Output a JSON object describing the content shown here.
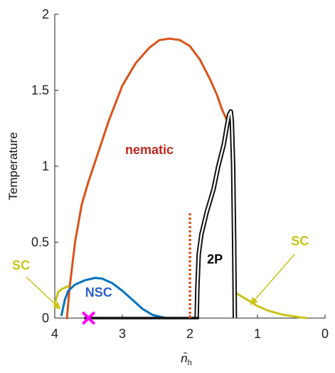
{
  "chart_data": {
    "type": "line",
    "title": "",
    "xlabel": "n̄",
    "xlabel_sub": "h",
    "ylabel": "Temperature",
    "xlim": [
      4,
      0
    ],
    "ylim": [
      0,
      2
    ],
    "x_reversed": true,
    "grid": false,
    "x_ticks": [
      4,
      3,
      2,
      1,
      0
    ],
    "x_tick_labels": [
      "4",
      "3",
      "2",
      "1",
      "0"
    ],
    "y_ticks": [
      0,
      0.5,
      1,
      1.5,
      2
    ],
    "y_tick_labels": [
      "0",
      "0.5",
      "1",
      "1.5",
      "2"
    ],
    "series": [
      {
        "key": "nematic",
        "color": "#d95319",
        "width": 3,
        "style": "solid",
        "points": [
          [
            3.82,
            0.0
          ],
          [
            3.78,
            0.2
          ],
          [
            3.7,
            0.5
          ],
          [
            3.6,
            0.75
          ],
          [
            3.5,
            0.9
          ],
          [
            3.35,
            1.1
          ],
          [
            3.2,
            1.3
          ],
          [
            3.0,
            1.53
          ],
          [
            2.8,
            1.68
          ],
          [
            2.6,
            1.78
          ],
          [
            2.45,
            1.83
          ],
          [
            2.3,
            1.84
          ],
          [
            2.15,
            1.83
          ],
          [
            2.0,
            1.79
          ],
          [
            1.85,
            1.7
          ],
          [
            1.7,
            1.57
          ],
          [
            1.6,
            1.47
          ],
          [
            1.53,
            1.38
          ],
          [
            1.45,
            1.3
          ]
        ]
      },
      {
        "key": "nsc",
        "color": "#0072bd",
        "width": 3,
        "style": "solid",
        "points": [
          [
            3.9,
            0.02
          ],
          [
            3.85,
            0.12
          ],
          [
            3.8,
            0.18
          ],
          [
            3.7,
            0.22
          ],
          [
            3.55,
            0.25
          ],
          [
            3.4,
            0.265
          ],
          [
            3.3,
            0.26
          ],
          [
            3.15,
            0.23
          ],
          [
            3.0,
            0.18
          ],
          [
            2.85,
            0.12
          ],
          [
            2.7,
            0.06
          ],
          [
            2.55,
            0.02
          ],
          [
            2.35,
            0.0
          ]
        ]
      },
      {
        "key": "sc-left",
        "color": "#c8c416",
        "width": 3,
        "style": "solid",
        "points": [
          [
            4.0,
            0.09
          ],
          [
            3.95,
            0.17
          ],
          [
            3.9,
            0.19
          ],
          [
            3.85,
            0.2
          ],
          [
            3.8,
            0.21
          ]
        ]
      },
      {
        "key": "sc-right",
        "color": "#c8c416",
        "width": 3,
        "style": "solid",
        "points": [
          [
            1.3,
            0.16
          ],
          [
            1.15,
            0.12
          ],
          [
            1.0,
            0.08
          ],
          [
            0.85,
            0.05
          ],
          [
            0.65,
            0.025
          ],
          [
            0.45,
            0.01
          ],
          [
            0.28,
            0.0
          ]
        ]
      },
      {
        "key": "two-phase-boundary",
        "color": "#111111",
        "width": 2,
        "style": "double",
        "points": [
          [
            1.9,
            0.0
          ],
          [
            1.89,
            0.2
          ],
          [
            1.87,
            0.42
          ],
          [
            1.83,
            0.55
          ],
          [
            1.75,
            0.7
          ],
          [
            1.65,
            0.85
          ],
          [
            1.58,
            1.0
          ],
          [
            1.5,
            1.14
          ],
          [
            1.45,
            1.27
          ],
          [
            1.42,
            1.34
          ],
          [
            1.395,
            1.36
          ],
          [
            1.38,
            1.3
          ],
          [
            1.36,
            1.0
          ],
          [
            1.345,
            0.5
          ],
          [
            1.335,
            0.0
          ]
        ]
      },
      {
        "key": "zero-line",
        "color": "#111111",
        "width": 3.5,
        "style": "solid",
        "points": [
          [
            3.55,
            0.0
          ],
          [
            1.88,
            0.0
          ]
        ]
      },
      {
        "key": "dotted-line",
        "color": "#d95319",
        "width": 3.5,
        "style": "dotted",
        "points": [
          [
            2.0,
            0.0
          ],
          [
            2.0,
            0.7
          ]
        ]
      }
    ],
    "marker": {
      "x": 3.5,
      "y": 0.0,
      "symbol": "x",
      "color": "#ff00ff"
    },
    "annotations": [
      {
        "key": "nematic",
        "text": "nematic",
        "x": 2.6,
        "y": 1.08,
        "color": "#c0281e"
      },
      {
        "key": "nsc",
        "text": "NSC",
        "x": 3.35,
        "y": 0.14,
        "color": "#2a5fc6"
      },
      {
        "key": "2p",
        "text": "2P",
        "x": 1.63,
        "y": 0.36,
        "color": "#000000"
      },
      {
        "key": "sc-left",
        "text": "SC",
        "x": 4.5,
        "y": 0.32,
        "color": "#c8c416"
      },
      {
        "key": "sc-right",
        "text": "SC",
        "x": 0.37,
        "y": 0.48,
        "color": "#c8c416"
      }
    ],
    "arrows": [
      {
        "key": "sc-left",
        "from": [
          4.42,
          0.27
        ],
        "to": [
          3.92,
          0.06
        ],
        "color": "#c8c416"
      },
      {
        "key": "sc-right",
        "from": [
          0.45,
          0.42
        ],
        "to": [
          1.1,
          0.09
        ],
        "color": "#c8c416"
      }
    ]
  }
}
